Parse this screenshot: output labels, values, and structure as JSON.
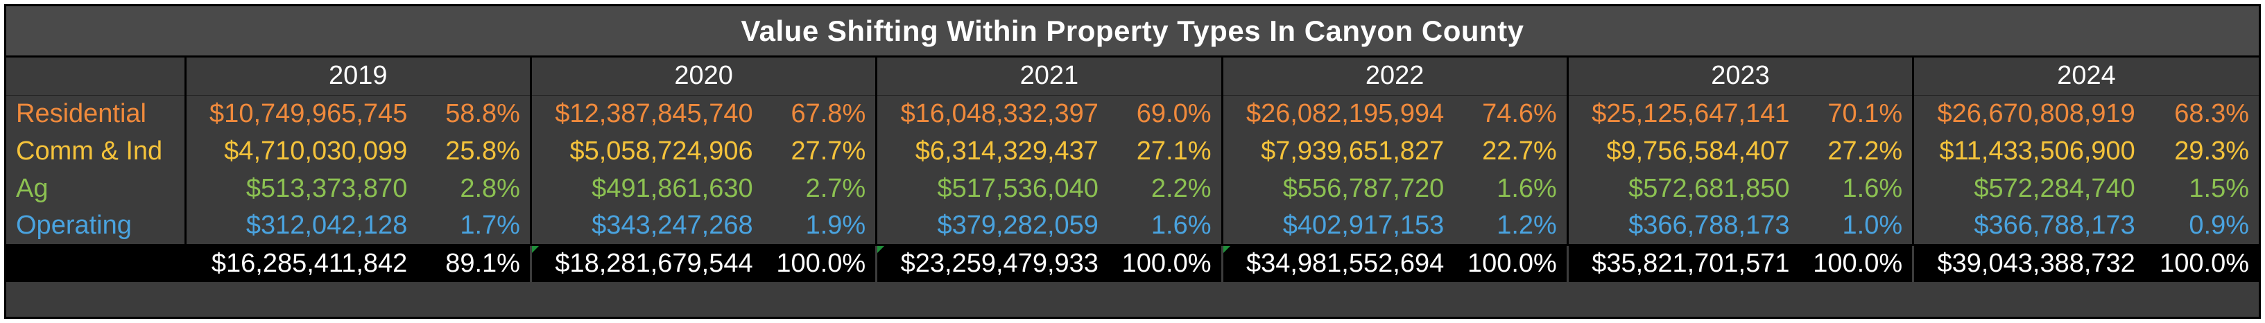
{
  "title": "Value Shifting Within Property Types In Canyon County",
  "colors": {
    "residential": "#f08a3c",
    "comm_ind": "#f5c33b",
    "ag": "#8cc152",
    "operating": "#4aa3df",
    "total": "#ffffff",
    "background": "#3c3c3c"
  },
  "years": [
    "2019",
    "2020",
    "2021",
    "2022",
    "2023",
    "2024"
  ],
  "rows": [
    {
      "label": "Residential",
      "color": "#f08a3c",
      "values": [
        {
          "amount": "$10,749,965,745",
          "pct": "58.8%"
        },
        {
          "amount": "$12,387,845,740",
          "pct": "67.8%"
        },
        {
          "amount": "$16,048,332,397",
          "pct": "69.0%"
        },
        {
          "amount": "$26,082,195,994",
          "pct": "74.6%"
        },
        {
          "amount": "$25,125,647,141",
          "pct": "70.1%"
        },
        {
          "amount": "$26,670,808,919",
          "pct": "68.3%"
        }
      ]
    },
    {
      "label": "Comm & Ind",
      "color": "#f5c33b",
      "values": [
        {
          "amount": "$4,710,030,099",
          "pct": "25.8%"
        },
        {
          "amount": "$5,058,724,906",
          "pct": "27.7%"
        },
        {
          "amount": "$6,314,329,437",
          "pct": "27.1%"
        },
        {
          "amount": "$7,939,651,827",
          "pct": "22.7%"
        },
        {
          "amount": "$9,756,584,407",
          "pct": "27.2%"
        },
        {
          "amount": "$11,433,506,900",
          "pct": "29.3%"
        }
      ]
    },
    {
      "label": "Ag",
      "color": "#8cc152",
      "values": [
        {
          "amount": "$513,373,870",
          "pct": "2.8%"
        },
        {
          "amount": "$491,861,630",
          "pct": "2.7%"
        },
        {
          "amount": "$517,536,040",
          "pct": "2.2%"
        },
        {
          "amount": "$556,787,720",
          "pct": "1.6%"
        },
        {
          "amount": "$572,681,850",
          "pct": "1.6%"
        },
        {
          "amount": "$572,284,740",
          "pct": "1.5%"
        }
      ]
    },
    {
      "label": "Operating",
      "color": "#4aa3df",
      "values": [
        {
          "amount": "$312,042,128",
          "pct": "1.7%"
        },
        {
          "amount": "$343,247,268",
          "pct": "1.9%"
        },
        {
          "amount": "$379,282,059",
          "pct": "1.6%"
        },
        {
          "amount": "$402,917,153",
          "pct": "1.2%"
        },
        {
          "amount": "$366,788,173",
          "pct": "1.0%"
        },
        {
          "amount": "$366,788,173",
          "pct": "0.9%"
        }
      ]
    }
  ],
  "totals": [
    {
      "amount": "$16,285,411,842",
      "pct": "89.1%"
    },
    {
      "amount": "$18,281,679,544",
      "pct": "100.0%"
    },
    {
      "amount": "$23,259,479,933",
      "pct": "100.0%"
    },
    {
      "amount": "$34,981,552,694",
      "pct": "100.0%"
    },
    {
      "amount": "$35,821,701,571",
      "pct": "100.0%"
    },
    {
      "amount": "$39,043,388,732",
      "pct": "100.0%"
    }
  ]
}
